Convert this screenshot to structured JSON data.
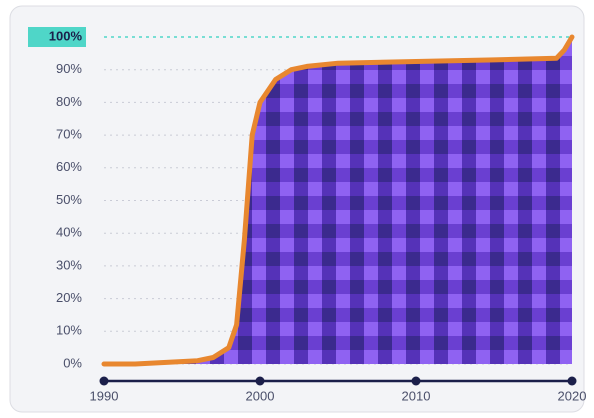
{
  "chart_data": {
    "type": "area",
    "x": [
      1990,
      1992,
      1994,
      1996,
      1997,
      1998,
      1998.5,
      1999,
      1999.5,
      2000,
      2001,
      2002,
      2003,
      2005,
      2010,
      2015,
      2019,
      2019.5,
      2020
    ],
    "values": [
      0,
      0,
      0.5,
      1,
      2,
      5,
      12,
      38,
      70,
      80,
      87,
      90,
      91,
      92,
      92.5,
      93,
      93.5,
      96,
      100
    ],
    "color": "#e8872f",
    "xlim": [
      1990,
      2020
    ],
    "xticks": [
      1990,
      2000,
      2010,
      2020
    ],
    "ylim": [
      0,
      100
    ],
    "yticks": [
      {
        "value": 0,
        "label": "0%"
      },
      {
        "value": 10,
        "label": "10%"
      },
      {
        "value": 20,
        "label": "20%"
      },
      {
        "value": 30,
        "label": "30%"
      },
      {
        "value": 40,
        "label": "40%"
      },
      {
        "value": 50,
        "label": "50%"
      },
      {
        "value": 60,
        "label": "60%"
      },
      {
        "value": 70,
        "label": "70%"
      },
      {
        "value": 80,
        "label": "80%"
      },
      {
        "value": 90,
        "label": "90%"
      },
      {
        "value": 100,
        "label": "100%"
      }
    ],
    "grid": true
  }
}
